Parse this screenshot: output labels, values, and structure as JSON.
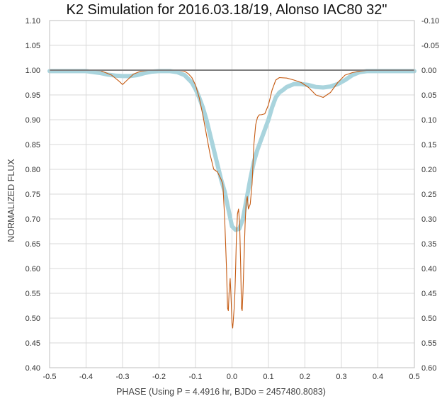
{
  "chart_data": {
    "type": "line",
    "title": "K2 Simulation for 2016.03.18/19, Alonso IAC80 32\"",
    "xlabel": "PHASE (Using P = 4.4916 hr, BJDo = 2457480.8083)",
    "ylabel": "NORMALIZED FLUX",
    "xlim": [
      -0.5,
      0.5
    ],
    "ylim": [
      0.4,
      1.1
    ],
    "y2lim": [
      0.6,
      -0.1
    ],
    "x_ticks": [
      "-0.5",
      "-0.4",
      "-0.3",
      "-0.2",
      "-0.1",
      "0.0",
      "0.1",
      "0.2",
      "0.3",
      "0.4",
      "0.5"
    ],
    "y_ticks": [
      "0.40",
      "0.45",
      "0.50",
      "0.55",
      "0.60",
      "0.65",
      "0.70",
      "0.75",
      "0.80",
      "0.85",
      "0.90",
      "0.95",
      "1.00",
      "1.05",
      "1.10"
    ],
    "y2_ticks": [
      "0.60",
      "0.55",
      "0.50",
      "0.45",
      "0.40",
      "0.35",
      "0.30",
      "0.25",
      "0.20",
      "0.15",
      "0.10",
      "0.05",
      "0.00",
      "-0.05",
      "-0.10"
    ],
    "reference_line": 1.0,
    "grid": true,
    "series": [
      {
        "color": "#c55a11",
        "style": "thin-line",
        "x": [
          -0.5,
          -0.4,
          -0.36,
          -0.33,
          -0.31,
          -0.3,
          -0.29,
          -0.27,
          -0.25,
          -0.22,
          -0.18,
          -0.15,
          -0.13,
          -0.12,
          -0.11,
          -0.1,
          -0.09,
          -0.08,
          -0.07,
          -0.06,
          -0.05,
          -0.04,
          -0.03,
          -0.025,
          -0.02,
          -0.015,
          -0.012,
          -0.01,
          -0.008,
          -0.005,
          -0.003,
          0.0,
          0.002,
          0.004,
          0.006,
          0.008,
          0.01,
          0.012,
          0.015,
          0.018,
          0.021,
          0.024,
          0.026,
          0.028,
          0.03,
          0.033,
          0.036,
          0.039,
          0.042,
          0.045,
          0.05,
          0.055,
          0.06,
          0.065,
          0.07,
          0.075,
          0.08,
          0.09,
          0.1,
          0.11,
          0.12,
          0.13,
          0.15,
          0.17,
          0.19,
          0.21,
          0.23,
          0.25,
          0.27,
          0.29,
          0.31,
          0.33,
          0.35,
          0.38,
          0.4,
          0.45,
          0.5
        ],
        "y": [
          1.0,
          1.0,
          0.999,
          0.99,
          0.978,
          0.971,
          0.978,
          0.992,
          0.998,
          1.0,
          1.0,
          1.0,
          0.998,
          0.993,
          0.985,
          0.97,
          0.945,
          0.91,
          0.87,
          0.83,
          0.8,
          0.795,
          0.78,
          0.77,
          0.7,
          0.6,
          0.52,
          0.515,
          0.55,
          0.58,
          0.55,
          0.49,
          0.48,
          0.5,
          0.52,
          0.55,
          0.6,
          0.66,
          0.71,
          0.72,
          0.69,
          0.6,
          0.52,
          0.515,
          0.55,
          0.62,
          0.69,
          0.735,
          0.745,
          0.72,
          0.73,
          0.77,
          0.85,
          0.89,
          0.905,
          0.91,
          0.91,
          0.912,
          0.93,
          0.96,
          0.98,
          0.985,
          0.984,
          0.98,
          0.975,
          0.965,
          0.95,
          0.945,
          0.955,
          0.975,
          0.99,
          0.995,
          0.998,
          1.0,
          1.0,
          1.0,
          1.0
        ]
      },
      {
        "color": "#a9d4dd",
        "style": "thick-line",
        "x": [
          -0.5,
          -0.4,
          -0.38,
          -0.36,
          -0.34,
          -0.32,
          -0.3,
          -0.28,
          -0.26,
          -0.24,
          -0.22,
          -0.2,
          -0.17,
          -0.15,
          -0.13,
          -0.11,
          -0.1,
          -0.09,
          -0.08,
          -0.07,
          -0.06,
          -0.05,
          -0.04,
          -0.03,
          -0.02,
          -0.01,
          0.0,
          0.01,
          0.02,
          0.03,
          0.04,
          0.05,
          0.06,
          0.07,
          0.08,
          0.09,
          0.1,
          0.11,
          0.12,
          0.13,
          0.14,
          0.15,
          0.17,
          0.19,
          0.21,
          0.23,
          0.25,
          0.27,
          0.29,
          0.31,
          0.33,
          0.35,
          0.37,
          0.4,
          0.45,
          0.5
        ],
        "y": [
          0.998,
          0.998,
          0.996,
          0.994,
          0.991,
          0.989,
          0.988,
          0.988,
          0.99,
          0.994,
          0.997,
          0.998,
          0.998,
          0.996,
          0.99,
          0.975,
          0.962,
          0.945,
          0.925,
          0.9,
          0.87,
          0.84,
          0.81,
          0.78,
          0.755,
          0.72,
          0.685,
          0.678,
          0.68,
          0.7,
          0.74,
          0.78,
          0.815,
          0.84,
          0.86,
          0.88,
          0.9,
          0.925,
          0.945,
          0.955,
          0.96,
          0.966,
          0.972,
          0.972,
          0.97,
          0.966,
          0.965,
          0.967,
          0.972,
          0.98,
          0.99,
          0.996,
          0.998,
          0.998,
          0.998,
          0.998
        ]
      }
    ]
  }
}
